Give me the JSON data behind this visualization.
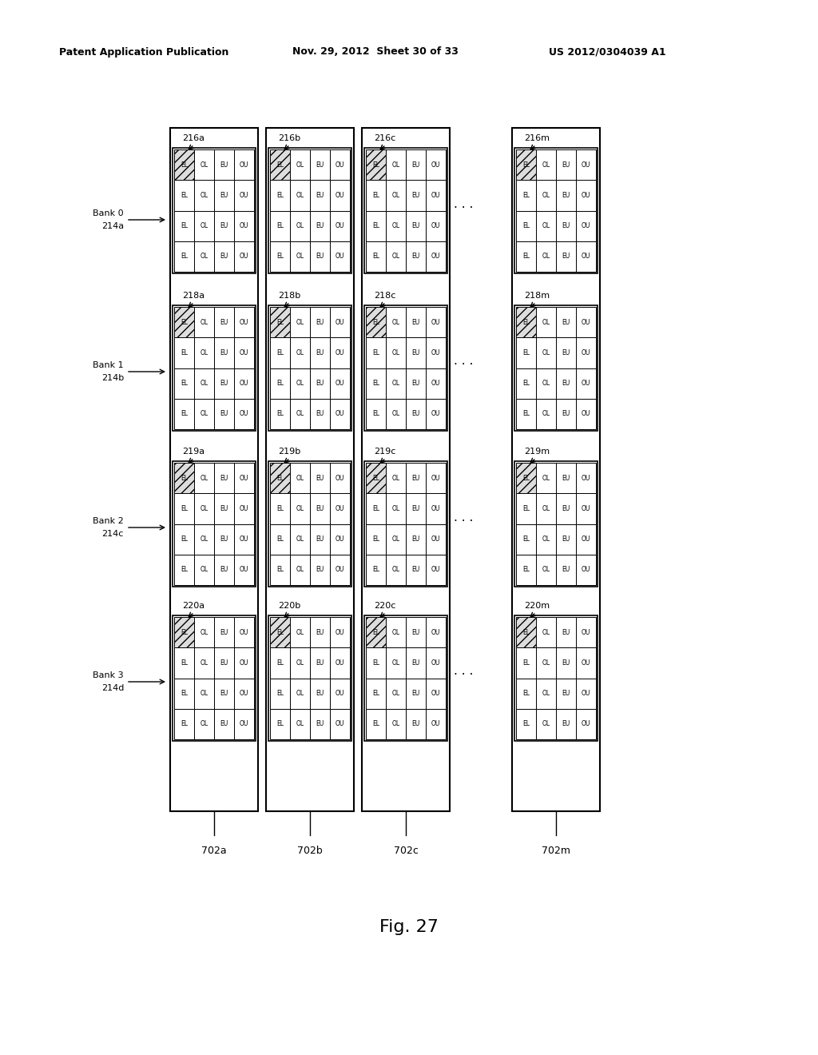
{
  "title_left": "Patent Application Publication",
  "title_mid": "Nov. 29, 2012  Sheet 30 of 33",
  "title_right": "US 2012/0304039 A1",
  "fig_label": "Fig. 27",
  "columns": [
    "a",
    "b",
    "c",
    "m"
  ],
  "col_labels": [
    "702a",
    "702b",
    "702c",
    "702m"
  ],
  "banks": [
    {
      "name": "Bank 0",
      "label": "214a",
      "blocks": [
        "216a",
        "216b",
        "216c",
        "216m"
      ]
    },
    {
      "name": "Bank 1",
      "label": "214b",
      "blocks": [
        "218a",
        "218b",
        "218c",
        "218m"
      ]
    },
    {
      "name": "Bank 2",
      "label": "214c",
      "blocks": [
        "219a",
        "219b",
        "219c",
        "219m"
      ]
    },
    {
      "name": "Bank 3",
      "label": "214d",
      "blocks": [
        "220a",
        "220b",
        "220c",
        "220m"
      ]
    }
  ],
  "cell_labels": [
    [
      "EL",
      "OL",
      "EU",
      "OU"
    ],
    [
      "EL",
      "OL",
      "EU",
      "OU"
    ],
    [
      "EL",
      "OL",
      "EU",
      "OU"
    ],
    [
      "EL",
      "OL",
      "EU",
      "OU"
    ]
  ],
  "bg_color": "#ffffff",
  "grid_color": "#000000",
  "hatch_color": "#aaaaaa",
  "text_color": "#000000"
}
